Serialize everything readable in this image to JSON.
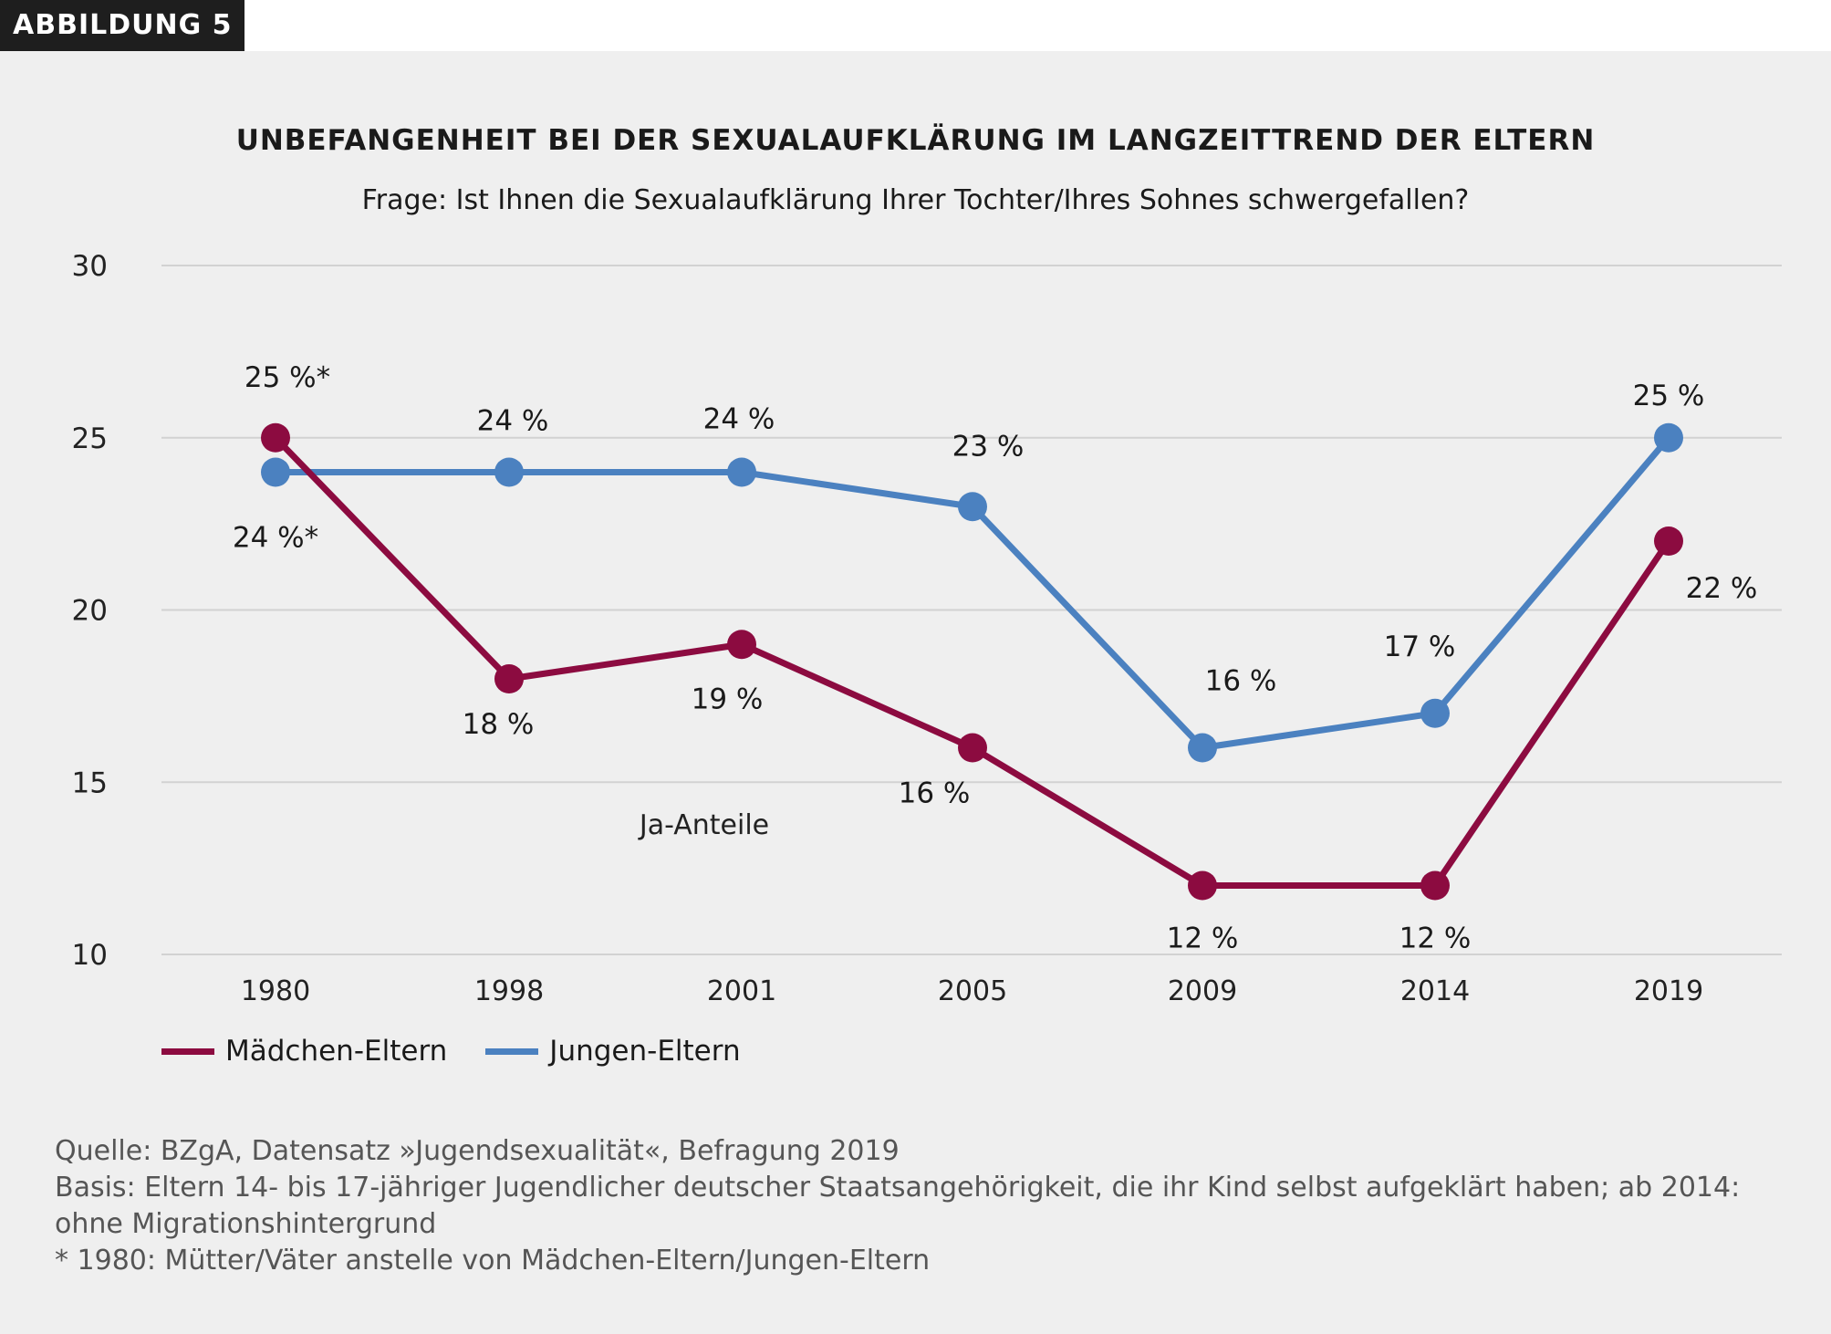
{
  "badge": "ABBILDUNG 5",
  "chart_data": {
    "type": "line",
    "title": "UNBEFANGENHEIT BEI DER SEXUALAUFKLÄRUNG IM LANGZEITTREND DER ELTERN",
    "subtitle": "Frage: Ist Ihnen die Sexualaufklärung Ihrer Tochter/Ihres Sohnes schwergefallen?",
    "annotation": "Ja-Anteile",
    "categories": [
      "1980",
      "1998",
      "2001",
      "2005",
      "2009",
      "2014",
      "2019"
    ],
    "yticks": [
      "30",
      "25",
      "20",
      "15",
      "10"
    ],
    "ylim": [
      10,
      30
    ],
    "grid": true,
    "legend_position": "bottom-left",
    "series": [
      {
        "name": "Mädchen-Eltern",
        "color": "#8c0b40",
        "values": [
          25,
          18,
          19,
          16,
          12,
          12,
          22
        ],
        "labels": [
          "25 %*",
          "18 %",
          "19 %",
          "16 %",
          "12 %",
          "12 %",
          "22 %"
        ]
      },
      {
        "name": "Jungen-Eltern",
        "color": "#4b81c0",
        "values": [
          24,
          24,
          24,
          23,
          16,
          17,
          25
        ],
        "labels": [
          "24 %*",
          "24 %",
          "24 %",
          "23 %",
          "16 %",
          "17 %",
          "25 %"
        ]
      }
    ]
  },
  "notes": [
    "Quelle: BZgA, Datensatz »Jugendsexualität«, Befragung 2019",
    "Basis: Eltern 14- bis 17-jähriger Jugendlicher deutscher Staatsangehörigkeit, die ihr Kind selbst aufgeklärt haben; ab 2014:",
    "ohne Migrationshintergrund",
    "* 1980: Mütter/Väter anstelle von Mädchen-Eltern/Jungen-Eltern"
  ]
}
